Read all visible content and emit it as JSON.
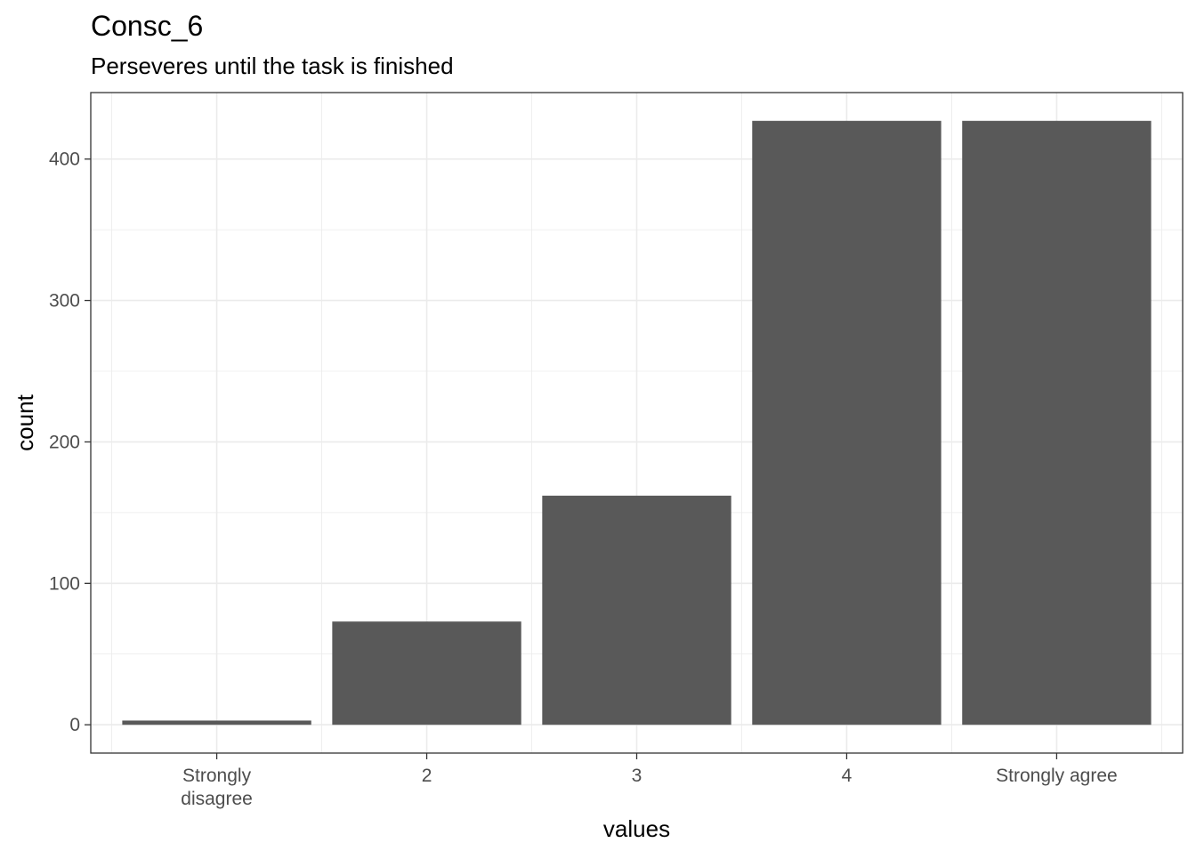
{
  "chart_data": {
    "type": "bar",
    "title": "Consc_6",
    "subtitle": "Perseveres until the task is finished",
    "xlabel": "values",
    "ylabel": "count",
    "categories": [
      [
        "Strongly",
        "disagree"
      ],
      [
        "2"
      ],
      [
        "3"
      ],
      [
        "4"
      ],
      [
        "Strongly agree"
      ]
    ],
    "values": [
      3,
      73,
      162,
      427,
      427
    ],
    "ylim": [
      -20,
      447
    ],
    "yticks": [
      0,
      100,
      200,
      300,
      400
    ],
    "grid": true,
    "bar_color": "#595959",
    "grid_color": "#ebebeb",
    "border_color": "#333333"
  }
}
